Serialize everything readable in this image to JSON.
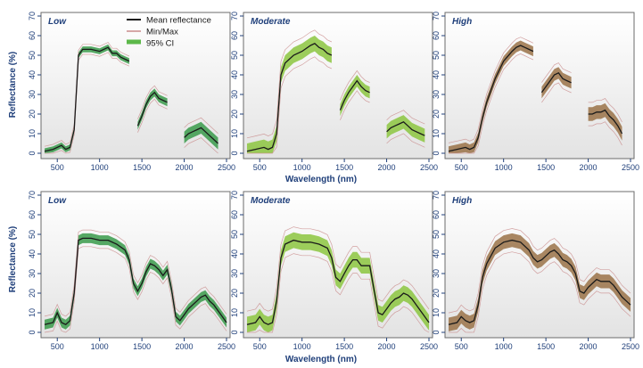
{
  "figure": {
    "ylabel": "Reflectance (%)",
    "xlabel": "Wavelength (nm)",
    "colors": {
      "mean": "#1a1a1a",
      "minmax": "#c98b8b",
      "ci_light_green": "#8cc63f",
      "ci_dark_green": "#3a9a4a",
      "ci_brown": "#9a7248",
      "panel_bg_top": "#ffffff",
      "panel_bg_bottom": "#e3e3e3",
      "ticks": "#1f3f7a"
    }
  },
  "legend": [
    {
      "label": "Mean reflectance",
      "color": "#1a1a1a"
    },
    {
      "label": "Min/Max",
      "color": "#c98b8b"
    },
    {
      "label": "95% CI",
      "color": "#5cb84a"
    }
  ],
  "chart_data": [
    {
      "type": "line",
      "row": 1,
      "title": "Low",
      "fill": "#3a9a4a",
      "xlim": [
        350,
        2500
      ],
      "ylim": [
        0,
        70
      ],
      "xticks": [
        500,
        1000,
        1500,
        2000,
        2500
      ],
      "yticks": [
        0,
        10,
        20,
        30,
        40,
        50,
        60,
        70
      ],
      "segments": [
        {
          "x": [
            350,
            450,
            550,
            600,
            650,
            700,
            750,
            800,
            900,
            1000,
            1100,
            1150,
            1200,
            1250,
            1300,
            1350
          ],
          "y": [
            1,
            2,
            4,
            2,
            3,
            12,
            50,
            53,
            53,
            52,
            54,
            51,
            51,
            49,
            48,
            47
          ],
          "band": 1.5
        },
        {
          "x": [
            1450,
            1500,
            1550,
            1600,
            1650,
            1700,
            1750,
            1800
          ],
          "y": [
            14,
            19,
            25,
            29,
            31,
            28,
            27,
            26
          ],
          "band": 2
        },
        {
          "x": [
            2000,
            2050,
            2100,
            2150,
            2200,
            2250,
            2300,
            2350,
            2400
          ],
          "y": [
            8,
            10,
            11,
            12,
            13,
            11,
            9,
            7,
            5
          ],
          "band": 3
        }
      ]
    },
    {
      "type": "line",
      "row": 1,
      "title": "Moderate",
      "fill": "#8cc63f",
      "xlim": [
        350,
        2500
      ],
      "ylim": [
        0,
        70
      ],
      "xticks": [
        500,
        1000,
        1500,
        2000,
        2500
      ],
      "yticks": [
        0,
        10,
        20,
        30,
        40,
        50,
        60,
        70
      ],
      "segments": [
        {
          "x": [
            350,
            450,
            550,
            600,
            650,
            700,
            750,
            800,
            900,
            1000,
            1100,
            1150,
            1200,
            1250,
            1300,
            1350
          ],
          "y": [
            1,
            2,
            3,
            2,
            3,
            10,
            40,
            46,
            50,
            52,
            55,
            56,
            54,
            53,
            51,
            50
          ],
          "band": 4
        },
        {
          "x": [
            1450,
            1500,
            1550,
            1600,
            1650,
            1700,
            1750,
            1800
          ],
          "y": [
            22,
            27,
            31,
            34,
            37,
            34,
            32,
            31
          ],
          "band": 3
        },
        {
          "x": [
            2000,
            2050,
            2100,
            2150,
            2200,
            2250,
            2300,
            2350,
            2400,
            2450
          ],
          "y": [
            11,
            13,
            14,
            15,
            16,
            14,
            12,
            11,
            10,
            9
          ],
          "band": 3.5
        }
      ]
    },
    {
      "type": "line",
      "row": 1,
      "title": "High",
      "fill": "#9a7248",
      "xlim": [
        350,
        2500
      ],
      "ylim": [
        0,
        70
      ],
      "xticks": [
        500,
        1000,
        1500,
        2000,
        2500
      ],
      "yticks": [
        0,
        10,
        20,
        30,
        40,
        50,
        60,
        70
      ],
      "segments": [
        {
          "x": [
            350,
            450,
            550,
            600,
            650,
            700,
            750,
            800,
            900,
            1000,
            1100,
            1150,
            1200,
            1250,
            1300,
            1350
          ],
          "y": [
            1,
            2,
            3,
            2,
            3,
            8,
            18,
            26,
            38,
            47,
            52,
            54,
            55,
            54,
            53,
            52
          ],
          "band": 2.5
        },
        {
          "x": [
            1450,
            1500,
            1550,
            1600,
            1650,
            1700,
            1750,
            1800
          ],
          "y": [
            31,
            34,
            37,
            40,
            41,
            38,
            37,
            36
          ],
          "band": 3
        },
        {
          "x": [
            2000,
            2050,
            2100,
            2150,
            2200,
            2250,
            2300,
            2350,
            2400
          ],
          "y": [
            20,
            20,
            21,
            21,
            22,
            19,
            17,
            14,
            10
          ],
          "band": 3.5
        }
      ]
    },
    {
      "type": "line",
      "row": 2,
      "title": "Low",
      "fill": "#3a9a4a",
      "xlim": [
        350,
        2500
      ],
      "ylim": [
        0,
        70
      ],
      "xticks": [
        500,
        1000,
        1500,
        2000,
        2500
      ],
      "yticks": [
        0,
        10,
        20,
        30,
        40,
        50,
        60,
        70
      ],
      "segments": [
        {
          "x": [
            350,
            450,
            500,
            550,
            600,
            650,
            700,
            750,
            800,
            900,
            1000,
            1100,
            1200,
            1300,
            1350,
            1400,
            1450,
            1500,
            1550,
            1600,
            1650,
            1700,
            1750,
            1800,
            1850,
            1900,
            1950,
            2000,
            2050,
            2100,
            2150,
            2200,
            2250,
            2300,
            2350,
            2400,
            2450,
            2500
          ],
          "y": [
            4,
            5,
            10,
            5,
            4,
            6,
            20,
            47,
            48,
            48,
            47,
            47,
            45,
            42,
            37,
            25,
            21,
            25,
            31,
            35,
            34,
            32,
            29,
            32,
            22,
            8,
            6,
            9,
            12,
            14,
            16,
            18,
            19,
            16,
            14,
            11,
            8,
            5
          ],
          "band": 2.5
        }
      ]
    },
    {
      "type": "line",
      "row": 2,
      "title": "Moderate",
      "fill": "#8cc63f",
      "xlim": [
        350,
        2500
      ],
      "ylim": [
        0,
        70
      ],
      "xticks": [
        500,
        1000,
        1500,
        2000,
        2500
      ],
      "yticks": [
        0,
        10,
        20,
        30,
        40,
        50,
        60,
        70
      ],
      "segments": [
        {
          "x": [
            350,
            450,
            500,
            550,
            600,
            650,
            700,
            750,
            800,
            900,
            1000,
            1100,
            1200,
            1300,
            1350,
            1400,
            1450,
            1500,
            1550,
            1600,
            1650,
            1700,
            1750,
            1800,
            1850,
            1900,
            1950,
            2000,
            2050,
            2100,
            2150,
            2200,
            2250,
            2300,
            2350,
            2400,
            2450,
            2500
          ],
          "y": [
            4,
            5,
            8,
            5,
            4,
            5,
            16,
            38,
            45,
            47,
            46,
            46,
            45,
            43,
            38,
            28,
            26,
            30,
            34,
            37,
            37,
            34,
            34,
            34,
            22,
            10,
            9,
            12,
            15,
            17,
            18,
            20,
            19,
            17,
            14,
            11,
            8,
            5
          ],
          "band": 4
        }
      ]
    },
    {
      "type": "line",
      "row": 2,
      "title": "High",
      "fill": "#9a7248",
      "xlim": [
        350,
        2500
      ],
      "ylim": [
        0,
        70
      ],
      "xticks": [
        500,
        1000,
        1500,
        2000,
        2500
      ],
      "yticks": [
        0,
        10,
        20,
        30,
        40,
        50,
        60,
        70
      ],
      "segments": [
        {
          "x": [
            350,
            450,
            500,
            550,
            600,
            650,
            700,
            750,
            800,
            900,
            1000,
            1100,
            1200,
            1300,
            1350,
            1400,
            1450,
            1500,
            1550,
            1600,
            1650,
            1700,
            1750,
            1800,
            1850,
            1900,
            1950,
            2000,
            2050,
            2100,
            2150,
            2200,
            2250,
            2300,
            2350,
            2400,
            2450,
            2500
          ],
          "y": [
            4,
            5,
            8,
            6,
            5,
            6,
            14,
            28,
            35,
            43,
            46,
            47,
            46,
            42,
            38,
            36,
            37,
            39,
            41,
            42,
            40,
            37,
            36,
            34,
            30,
            21,
            20,
            23,
            25,
            27,
            26,
            26,
            26,
            24,
            21,
            18,
            16,
            14
          ],
          "band": 3.5
        }
      ]
    }
  ]
}
